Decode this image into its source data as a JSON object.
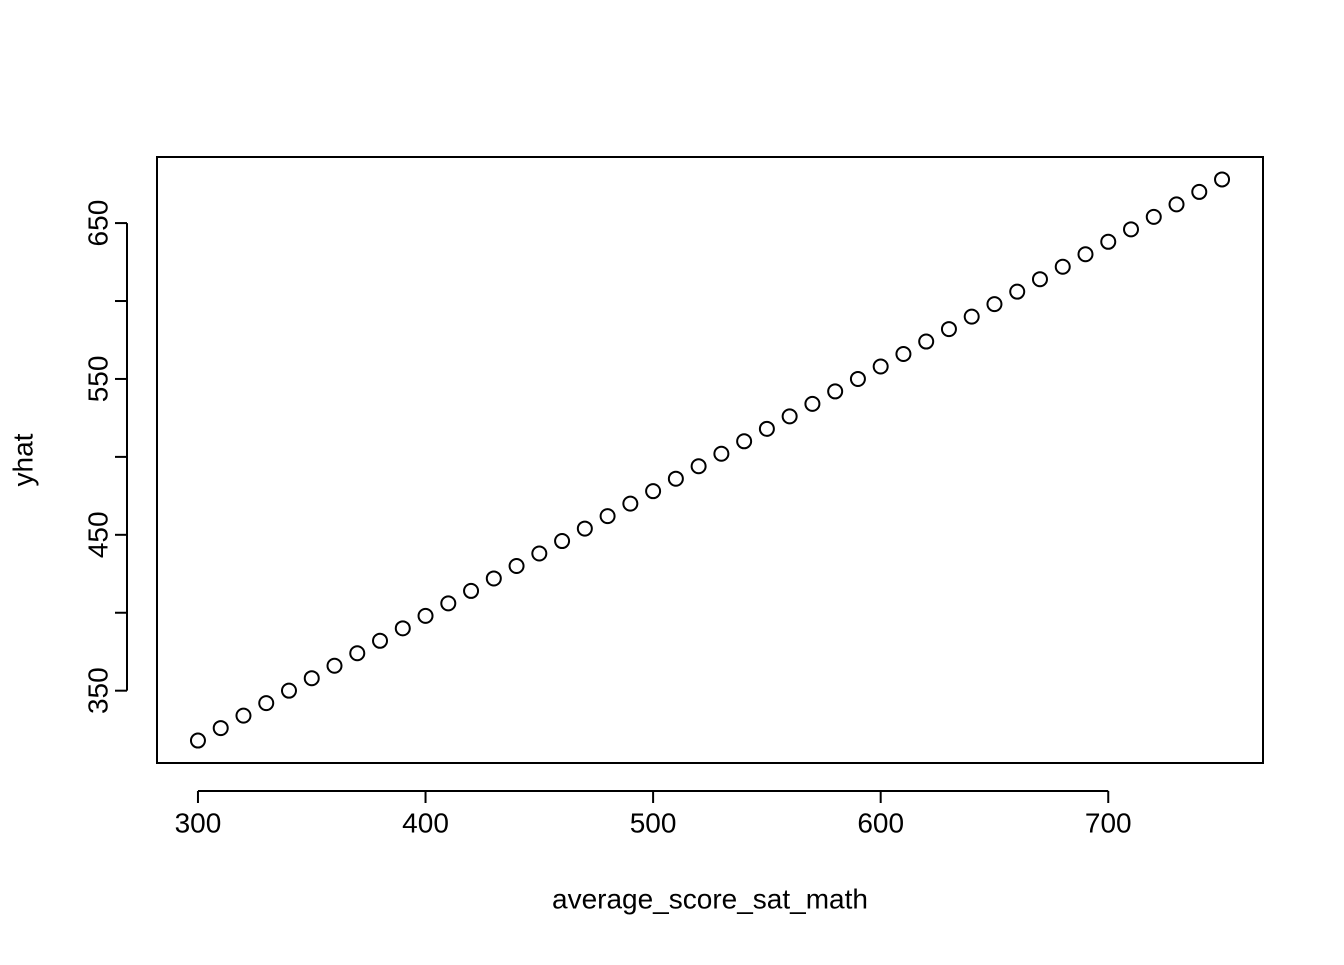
{
  "chart_data": {
    "type": "scatter",
    "x_label": "average_score_sat_math",
    "y_label": "yhat",
    "x": [
      300,
      310,
      320,
      330,
      340,
      350,
      360,
      370,
      380,
      390,
      400,
      410,
      420,
      430,
      440,
      450,
      460,
      470,
      480,
      490,
      500,
      510,
      520,
      530,
      540,
      550,
      560,
      570,
      580,
      590,
      600,
      610,
      620,
      630,
      640,
      650,
      660,
      670,
      680,
      690,
      700,
      710,
      720,
      730,
      740,
      750
    ],
    "series": [
      {
        "values": [
          318,
          326,
          334,
          342,
          350,
          358,
          366,
          374,
          382,
          390,
          398,
          406,
          414,
          422,
          430,
          438,
          446,
          454,
          462,
          470,
          478,
          486,
          494,
          502,
          510,
          518,
          526,
          534,
          542,
          550,
          558,
          566,
          574,
          582,
          590,
          598,
          606,
          614,
          622,
          630,
          638,
          646,
          654,
          662,
          670,
          678
        ],
        "color": "#000000"
      }
    ],
    "xlim": [
      282,
      768
    ],
    "ylim": [
      303.6,
      692.4
    ],
    "xticks": [
      300,
      400,
      500,
      600,
      700
    ],
    "yticks": [
      350,
      {
        "value": 400,
        "label": null
      },
      450,
      {
        "value": 500,
        "label": null
      },
      550,
      {
        "value": 600,
        "label": null
      },
      650
    ],
    "grid": false
  }
}
